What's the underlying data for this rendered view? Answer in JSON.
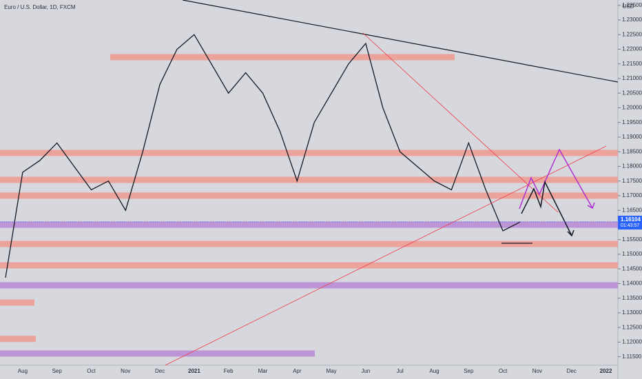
{
  "chart_data": {
    "type": "line",
    "title": "Euro / U.S. Dollar, 1D, FXCM",
    "currency": "USD",
    "categories": [
      null,
      "Aug",
      null,
      "Sep",
      null,
      "Oct",
      null,
      "Nov",
      null,
      "Dec",
      null,
      "2021",
      null,
      "Feb",
      null,
      "Mar",
      null,
      "Apr",
      null,
      "May",
      null,
      "Jun",
      null,
      "Jul",
      null,
      "Aug",
      null,
      "Sep",
      null,
      "Oct",
      null,
      "Nov",
      null,
      "Dec",
      null,
      "2022"
    ],
    "series": [
      {
        "name": "EURUSD",
        "color": "#131722",
        "values": [
          1.142,
          1.178,
          1.182,
          1.188,
          1.18,
          1.172,
          1.175,
          1.165,
          1.185,
          1.208,
          1.22,
          1.225,
          1.215,
          1.205,
          1.212,
          1.205,
          1.192,
          1.175,
          1.195,
          1.205,
          1.215,
          1.222,
          1.2,
          1.185,
          1.18,
          1.175,
          1.172,
          1.188,
          1.172,
          1.158,
          1.161,
          null,
          null,
          null,
          null,
          null
        ]
      }
    ],
    "zones": [
      {
        "value": 1.2173,
        "color": "#ef9a8f"
      },
      {
        "value": 1.1846,
        "color": "#ef9a8f"
      },
      {
        "value": 1.1754,
        "color": "#ef9a8f"
      },
      {
        "value": 1.17,
        "color": "#ef9a8f"
      },
      {
        "value": 1.1601,
        "color": "#b98ad6"
      },
      {
        "value": 1.1535,
        "color": "#ef9a8f"
      },
      {
        "value": 1.1462,
        "color": "#ef9a8f"
      },
      {
        "value": 1.1394,
        "color": "#b98ad6"
      },
      {
        "value": 1.1335,
        "color": "#ef9a8f"
      },
      {
        "value": 1.1211,
        "color": "#ef9a8f"
      },
      {
        "value": 1.1161,
        "color": "#b98ad6"
      }
    ],
    "last_price": 1.16104,
    "countdown": "01:43:57",
    "ylim": [
      1.1121,
      1.23682
    ],
    "yticks": [
      {
        "value": 1.115,
        "label": "1.11500"
      },
      {
        "value": 1.12,
        "label": "1.12000"
      },
      {
        "value": 1.125,
        "label": "1.12500"
      },
      {
        "value": 1.13,
        "label": "1.13000"
      },
      {
        "value": 1.135,
        "label": "1.13500"
      },
      {
        "value": 1.14,
        "label": "1.14000"
      },
      {
        "value": 1.145,
        "label": "1.14500"
      },
      {
        "value": 1.15,
        "label": "1.15000"
      },
      {
        "value": 1.155,
        "label": "1.15500"
      },
      {
        "value": 1.16,
        "label": "1.16000"
      },
      {
        "value": 1.165,
        "label": "1.16500"
      },
      {
        "value": 1.17,
        "label": "1.17000"
      },
      {
        "value": 1.175,
        "label": "1.17500"
      },
      {
        "value": 1.18,
        "label": "1.18000"
      },
      {
        "value": 1.185,
        "label": "1.18500"
      },
      {
        "value": 1.19,
        "label": "1.19000"
      },
      {
        "value": 1.195,
        "label": "1.19500"
      },
      {
        "value": 1.2,
        "label": "1.20000"
      },
      {
        "value": 1.205,
        "label": "1.20500"
      },
      {
        "value": 1.21,
        "label": "1.21000"
      },
      {
        "value": 1.215,
        "label": "1.21500"
      },
      {
        "value": 1.22,
        "label": "1.22000"
      },
      {
        "value": 1.225,
        "label": "1.22500"
      },
      {
        "value": 1.23,
        "label": "1.23000"
      },
      {
        "value": 1.235,
        "label": "1.23500"
      }
    ]
  }
}
